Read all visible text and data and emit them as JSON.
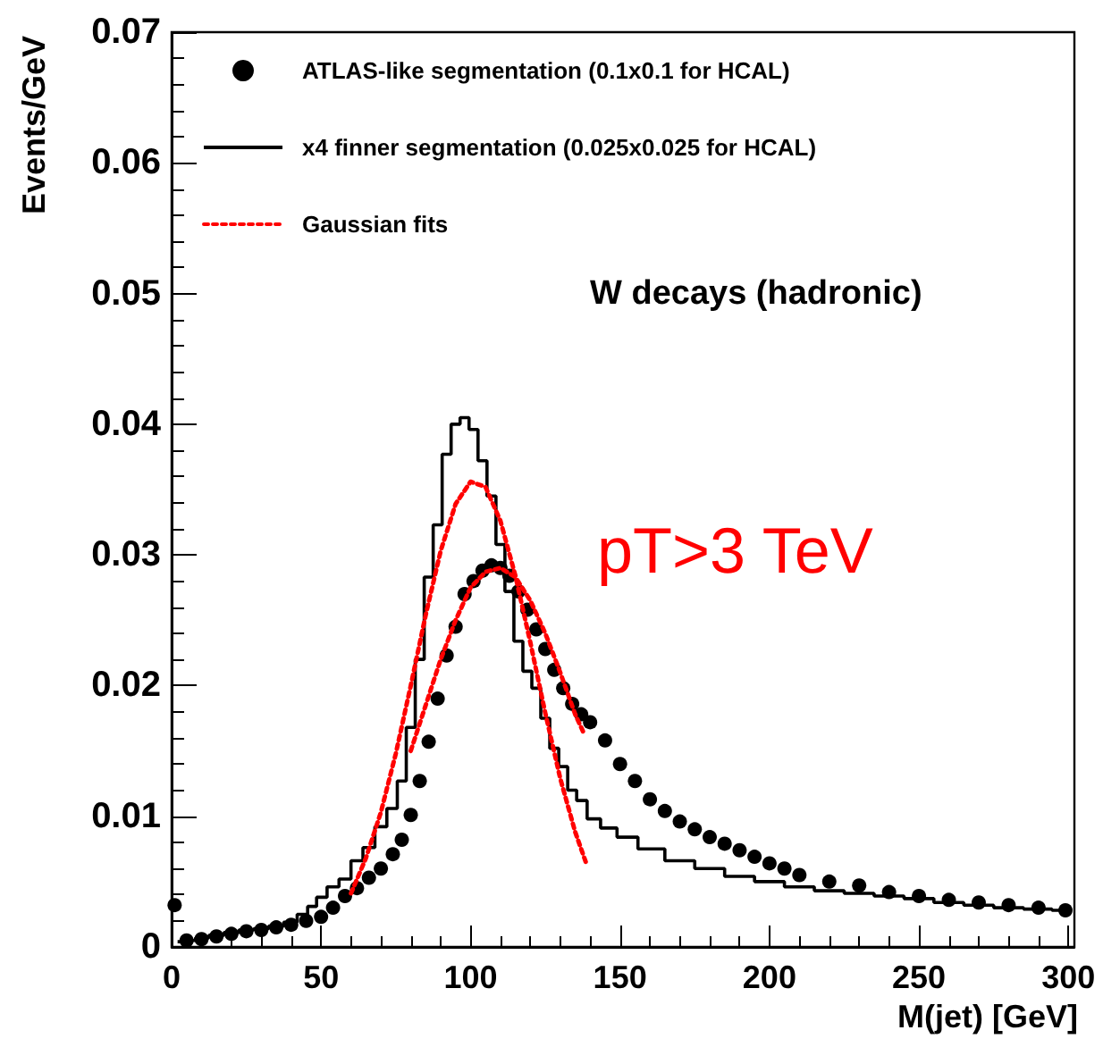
{
  "chart_data": {
    "type": "line",
    "xlabel": "M(jet) [GeV]",
    "ylabel": "Events/GeV",
    "annotations": [
      "W decays (hadronic)",
      "pT>3 TeV"
    ],
    "xlim": [
      0,
      302
    ],
    "xticks": [
      0,
      50,
      100,
      150,
      200,
      250,
      300
    ],
    "ylim": [
      0,
      0.07
    ],
    "yticks": [
      0,
      0.01,
      0.02,
      0.03,
      0.04,
      0.05,
      0.06,
      0.07
    ],
    "grid": false,
    "legend": "top left",
    "series": [
      {
        "name": "ATLAS-like segmentation (0.1x0.1 for HCAL)",
        "type": "scatter",
        "marker": "circle",
        "color": "#000000",
        "x": [
          1,
          5,
          10,
          15,
          20,
          25,
          30,
          35,
          40,
          45,
          50,
          54,
          58,
          62,
          66,
          70,
          74,
          77,
          80,
          83,
          86,
          89,
          92,
          95,
          98,
          101,
          104,
          107,
          110,
          113,
          116,
          119,
          122,
          125,
          128,
          131,
          134,
          137,
          140,
          145,
          150,
          155,
          160,
          165,
          170,
          175,
          180,
          185,
          190,
          195,
          200,
          205,
          210,
          220,
          230,
          240,
          250,
          260,
          270,
          280,
          290,
          299
        ],
        "values": [
          0.0032,
          0.0005,
          0.0006,
          0.0008,
          0.001,
          0.0012,
          0.0013,
          0.0015,
          0.0017,
          0.002,
          0.0023,
          0.003,
          0.0039,
          0.0045,
          0.0053,
          0.006,
          0.0071,
          0.0082,
          0.0101,
          0.0127,
          0.0157,
          0.019,
          0.0223,
          0.0245,
          0.027,
          0.028,
          0.0288,
          0.0292,
          0.029,
          0.0284,
          0.0272,
          0.0258,
          0.0243,
          0.0228,
          0.0212,
          0.0198,
          0.0186,
          0.0178,
          0.0172,
          0.0158,
          0.014,
          0.0127,
          0.0113,
          0.0104,
          0.0096,
          0.009,
          0.0084,
          0.0079,
          0.0074,
          0.0069,
          0.0064,
          0.006,
          0.0055,
          0.005,
          0.0047,
          0.0042,
          0.0039,
          0.0036,
          0.0034,
          0.0032,
          0.003,
          0.0028
        ]
      },
      {
        "name": "x4 finner segmentation (0.025x0.025 for HCAL)",
        "type": "step",
        "color": "#000000",
        "x": [
          2,
          6,
          10,
          15,
          20,
          25,
          30,
          35,
          40,
          44,
          47,
          50,
          54,
          58,
          62,
          66,
          70,
          74,
          77,
          80,
          83,
          86,
          89,
          92,
          95,
          98,
          101,
          104,
          107,
          110,
          113,
          116,
          119,
          122,
          125,
          128,
          131,
          134,
          137,
          141,
          146,
          152,
          160,
          170,
          180,
          190,
          200,
          210,
          220,
          230,
          240,
          250,
          260,
          270,
          280,
          290,
          299
        ],
        "values": [
          0.0004,
          0.0005,
          0.0007,
          0.0009,
          0.0011,
          0.0013,
          0.0014,
          0.0016,
          0.0019,
          0.0025,
          0.0031,
          0.0038,
          0.0046,
          0.0052,
          0.0066,
          0.0076,
          0.0092,
          0.0106,
          0.0127,
          0.0168,
          0.022,
          0.0283,
          0.0323,
          0.0377,
          0.04,
          0.0405,
          0.0396,
          0.0372,
          0.0345,
          0.0308,
          0.0272,
          0.0234,
          0.0211,
          0.0198,
          0.0175,
          0.0152,
          0.0138,
          0.012,
          0.0112,
          0.0098,
          0.0091,
          0.0084,
          0.0075,
          0.0066,
          0.006,
          0.0054,
          0.005,
          0.0046,
          0.0043,
          0.0041,
          0.0039,
          0.0037,
          0.0034,
          0.0032,
          0.003,
          0.0029,
          0.0028
        ]
      },
      {
        "name": "Gaussian fits",
        "line_style": "dotted",
        "marker": "none",
        "color": "#ff0000",
        "x": [
          60,
          65,
          70,
          75,
          80,
          85,
          90,
          95,
          100,
          105,
          110,
          115,
          120,
          125,
          130,
          135,
          139
        ],
        "values": [
          0.0041,
          0.0068,
          0.0103,
          0.0148,
          0.02,
          0.0254,
          0.0303,
          0.0339,
          0.0356,
          0.0352,
          0.0326,
          0.0284,
          0.0233,
          0.0179,
          0.0129,
          0.0088,
          0.0062
        ]
      },
      {
        "line_style": "dotted",
        "marker": "none",
        "color": "#ff0000",
        "x": [
          80,
          85,
          90,
          95,
          100,
          105,
          110,
          115,
          120,
          125,
          130,
          135,
          138
        ],
        "values": [
          0.015,
          0.0185,
          0.022,
          0.025,
          0.0275,
          0.0287,
          0.029,
          0.0283,
          0.0265,
          0.024,
          0.021,
          0.0178,
          0.0163
        ]
      }
    ]
  }
}
